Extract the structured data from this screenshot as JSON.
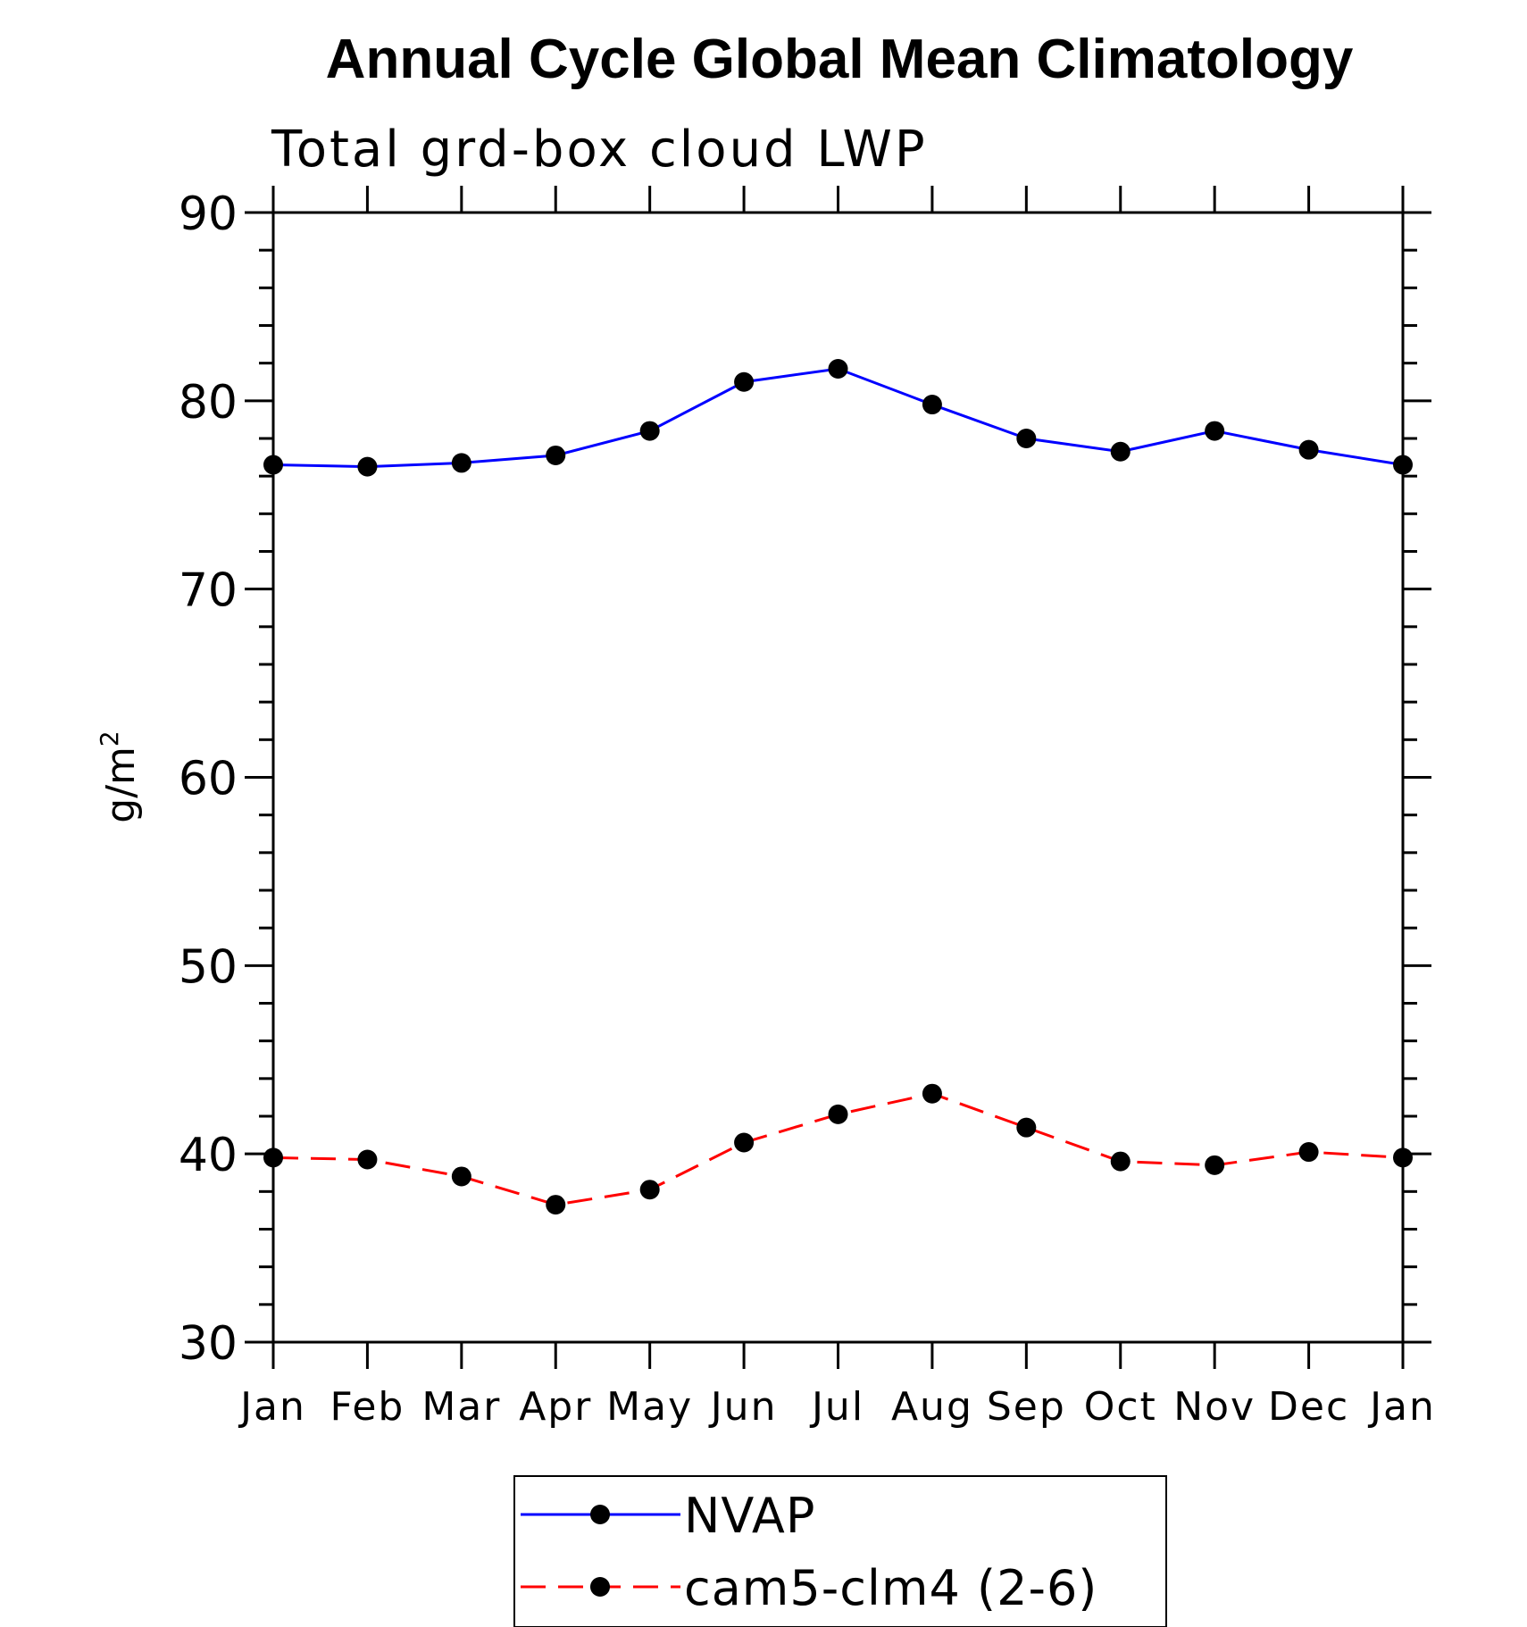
{
  "chart_data": {
    "type": "line",
    "title": "Annual Cycle Global Mean Climatology",
    "subtitle": "Total grd-box cloud LWP",
    "xlabel": "",
    "ylabel": "g/m",
    "ylabel_superscript": "2",
    "categories": [
      "Jan",
      "Feb",
      "Mar",
      "Apr",
      "May",
      "Jun",
      "Jul",
      "Aug",
      "Sep",
      "Oct",
      "Nov",
      "Dec",
      "Jan"
    ],
    "ylim": [
      30,
      90
    ],
    "yticks": [
      30,
      40,
      50,
      60,
      70,
      80,
      90
    ],
    "y_minor_step": 2,
    "grid": false,
    "legend_position": "bottom-center",
    "series": [
      {
        "name": "NVAP",
        "color": "#0000ff",
        "style": "solid",
        "marker": "filled-circle",
        "values": [
          76.6,
          76.5,
          76.7,
          77.1,
          78.4,
          81.0,
          81.7,
          79.8,
          78.0,
          77.3,
          78.4,
          77.4,
          76.6
        ]
      },
      {
        "name": "cam5-clm4 (2-6)",
        "color": "#ff0000",
        "style": "dashed",
        "marker": "filled-circle",
        "values": [
          39.8,
          39.7,
          38.8,
          37.3,
          38.1,
          40.6,
          42.1,
          43.2,
          41.4,
          39.6,
          39.4,
          40.1,
          39.8
        ]
      }
    ]
  }
}
